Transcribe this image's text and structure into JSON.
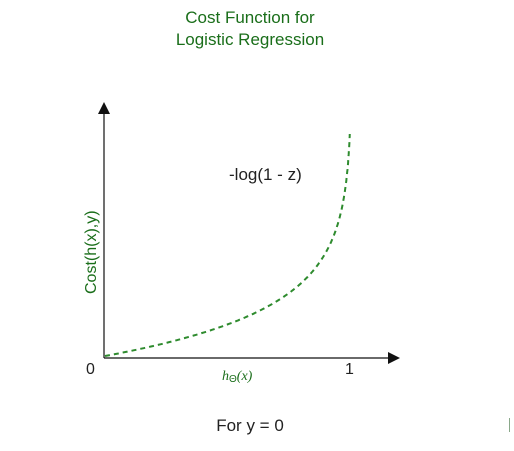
{
  "title": {
    "line1": "Cost Function for",
    "line2": "Logistic Regression"
  },
  "axes": {
    "ylabel": "Cost(h(x),y)",
    "xlabel_main": "h",
    "xlabel_sub": "Θ",
    "xlabel_arg": "(x)",
    "origin_label": "0",
    "x_end_label": "1"
  },
  "curve": {
    "label": "-log(1 - z)",
    "color": "#2e8b2e",
    "style": "dashed"
  },
  "footer": "For y = 0",
  "chart_data": {
    "type": "line",
    "series": [
      {
        "name": "-log(1 - z)",
        "function": "-log(1 - z)"
      }
    ],
    "xlim": [
      0,
      1
    ],
    "condition": "For y = 0"
  }
}
